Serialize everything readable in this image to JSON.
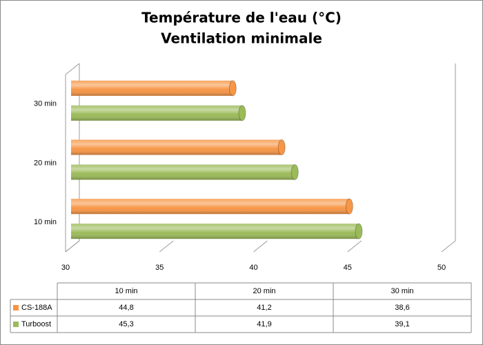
{
  "chart_data": {
    "type": "bar3d",
    "title": "Température de l'eau (°C)",
    "subtitle": "Ventilation minimale",
    "categories": [
      "10 min",
      "20 min",
      "30 min"
    ],
    "series": [
      {
        "name": "CS-188A",
        "color": "#f79646",
        "values": [
          44.8,
          41.2,
          38.6
        ],
        "value_labels": [
          "44,8",
          "41,2",
          "38,6"
        ]
      },
      {
        "name": "Turboost",
        "color": "#9bbb59",
        "values": [
          45.3,
          41.9,
          39.1
        ],
        "value_labels": [
          "45,3",
          "41,9",
          "39,1"
        ]
      }
    ],
    "xlim": [
      30,
      50
    ],
    "xticks": [
      30,
      35,
      40,
      45,
      50
    ],
    "grid": true,
    "data_table": true
  }
}
